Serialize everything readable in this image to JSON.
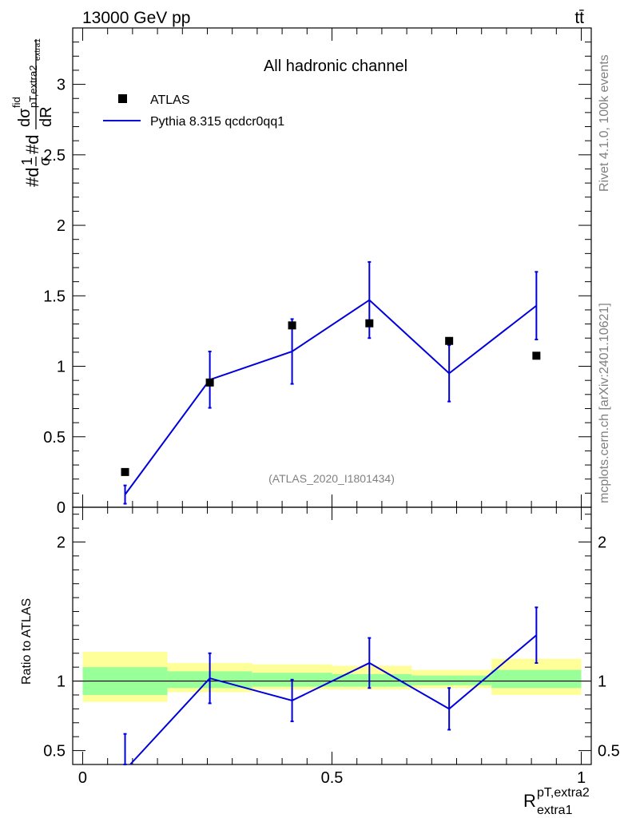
{
  "header": {
    "energy_label": "13000 GeV pp",
    "process_label": "tt̄"
  },
  "side_labels": {
    "rivet": "Rivet 4.1.0,  100k events",
    "mcplots": "mcplots.cern.ch [arXiv:2401.10621]"
  },
  "chart_data": {
    "type": "scatter",
    "title": "All hadronic channel",
    "analysis_id": "(ATLAS_2020_I1801434)",
    "xlabel": {
      "main": "R",
      "sup": "pT,extra2",
      "sub": "extra1"
    },
    "ylabel": {
      "num": "#d",
      "frac1_num": "1",
      "frac1_den": "σ",
      "mid": "#d",
      "frac2_num": "dσ",
      "frac2_num_sup": "fid",
      "frac2_num_sub": "pT,extra2",
      "frac2_num_subsub": "extra1",
      "frac2_den": "dR"
    },
    "xlim": [
      -0.02,
      1.02
    ],
    "ylim": [
      0,
      3.4
    ],
    "xticks": [
      0,
      0.5,
      1
    ],
    "xtick_labels": [
      "0",
      "0.5",
      "1"
    ],
    "yticks": [
      0.5,
      1,
      1.5,
      2,
      2.5,
      3
    ],
    "ytick_labels": [
      "0.5",
      "1",
      "1.5",
      "2",
      "2.5",
      "3"
    ],
    "legend": {
      "data_label": "ATLAS",
      "mc_label": "Pythia 8.315 qcdcr0qq1",
      "placement": "top-left"
    },
    "bins": [
      [
        0.0,
        0.17
      ],
      [
        0.17,
        0.34
      ],
      [
        0.34,
        0.5
      ],
      [
        0.5,
        0.66
      ],
      [
        0.66,
        0.82
      ],
      [
        0.82,
        1.0
      ]
    ],
    "data": {
      "name": "ATLAS",
      "x": [
        0.085,
        0.255,
        0.42,
        0.575,
        0.735,
        0.91
      ],
      "y": [
        0.25,
        0.885,
        1.29,
        1.305,
        1.18,
        1.075
      ]
    },
    "mc": {
      "name": "Pythia 8.315 qcdcr0qq1",
      "color": "#0000dd",
      "x": [
        0.085,
        0.255,
        0.42,
        0.575,
        0.735,
        0.91
      ],
      "y": [
        0.09,
        0.905,
        1.105,
        1.47,
        0.95,
        1.43
      ],
      "err": [
        0.065,
        0.2,
        0.23,
        0.27,
        0.2,
        0.24
      ]
    },
    "ratio": {
      "ylabel": "Ratio to ATLAS",
      "ylim": [
        0.4,
        2.25
      ],
      "yticks": [
        0.5,
        1,
        2
      ],
      "ytick_labels": [
        "0.5",
        "1",
        "2"
      ],
      "mc_values": [
        0.36,
        1.02,
        0.86,
        1.13,
        0.8,
        1.33
      ],
      "mc_err": [
        0.26,
        0.18,
        0.15,
        0.18,
        0.15,
        0.2
      ],
      "band_inner": [
        [
          0.9,
          1.1
        ],
        [
          0.95,
          1.07
        ],
        [
          0.96,
          1.06
        ],
        [
          0.96,
          1.05
        ],
        [
          0.97,
          1.04
        ],
        [
          0.95,
          1.08
        ]
      ],
      "band_outer": [
        [
          0.85,
          1.21
        ],
        [
          0.92,
          1.13
        ],
        [
          0.94,
          1.12
        ],
        [
          0.94,
          1.11
        ],
        [
          0.95,
          1.08
        ],
        [
          0.9,
          1.16
        ]
      ],
      "band_inner_color": "#99ff99",
      "band_outer_color": "#ffff99"
    }
  }
}
